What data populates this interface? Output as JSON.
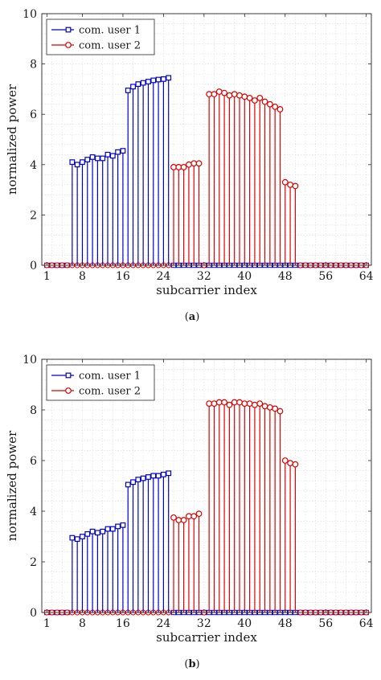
{
  "chart_data": [
    {
      "type": "stem",
      "caption_letter": "a",
      "title": "",
      "xlabel": "subcarrier index",
      "ylabel": "normalized power",
      "xlim": [
        0,
        65
      ],
      "ylim": [
        0,
        10
      ],
      "xticks": [
        1,
        8,
        16,
        24,
        32,
        40,
        48,
        56,
        64
      ],
      "yticks": [
        0,
        2,
        4,
        6,
        8,
        10
      ],
      "grid": true,
      "legend_position": "top-left",
      "series": [
        {
          "name": "com. user 1",
          "color": "#0000cc",
          "marker": "square",
          "x": [
            6,
            7,
            8,
            9,
            10,
            11,
            12,
            13,
            14,
            15,
            16,
            17,
            18,
            19,
            20,
            21,
            22,
            23,
            24,
            25
          ],
          "values": [
            4.1,
            4.0,
            4.1,
            4.2,
            4.3,
            4.25,
            4.25,
            4.4,
            4.35,
            4.5,
            4.55,
            6.95,
            7.1,
            7.2,
            7.25,
            7.3,
            7.35,
            7.38,
            7.4,
            7.45
          ]
        },
        {
          "name": "com. user 2",
          "color": "#dd0000",
          "marker": "circle",
          "x": [
            26,
            27,
            28,
            29,
            30,
            31,
            33,
            34,
            35,
            36,
            37,
            38,
            39,
            40,
            41,
            42,
            43,
            44,
            45,
            46,
            47,
            48,
            49,
            50
          ],
          "values": [
            3.9,
            3.9,
            3.9,
            4.0,
            4.05,
            4.05,
            6.8,
            6.8,
            6.9,
            6.85,
            6.75,
            6.8,
            6.75,
            6.7,
            6.65,
            6.55,
            6.65,
            6.5,
            6.4,
            6.3,
            6.2,
            3.3,
            3.2,
            3.15
          ]
        }
      ]
    },
    {
      "type": "stem",
      "caption_letter": "b",
      "title": "",
      "xlabel": "subcarrier index",
      "ylabel": "normalized power",
      "xlim": [
        0,
        65
      ],
      "ylim": [
        0,
        10
      ],
      "xticks": [
        1,
        8,
        16,
        24,
        32,
        40,
        48,
        56,
        64
      ],
      "yticks": [
        0,
        2,
        4,
        6,
        8,
        10
      ],
      "grid": true,
      "legend_position": "top-left",
      "series": [
        {
          "name": "com. user 1",
          "color": "#0000cc",
          "marker": "square",
          "x": [
            6,
            7,
            8,
            9,
            10,
            11,
            12,
            13,
            14,
            15,
            16,
            17,
            18,
            19,
            20,
            21,
            22,
            23,
            24,
            25
          ],
          "values": [
            2.95,
            2.9,
            3.0,
            3.1,
            3.2,
            3.15,
            3.2,
            3.3,
            3.3,
            3.4,
            3.45,
            5.05,
            5.15,
            5.25,
            5.3,
            5.35,
            5.4,
            5.4,
            5.45,
            5.5
          ]
        },
        {
          "name": "com. user 2",
          "color": "#dd0000",
          "marker": "circle",
          "x": [
            26,
            27,
            28,
            29,
            30,
            31,
            33,
            34,
            35,
            36,
            37,
            38,
            39,
            40,
            41,
            42,
            43,
            44,
            45,
            46,
            47,
            48,
            49,
            50
          ],
          "values": [
            3.75,
            3.65,
            3.65,
            3.8,
            3.8,
            3.9,
            8.25,
            8.25,
            8.3,
            8.3,
            8.2,
            8.3,
            8.3,
            8.25,
            8.25,
            8.2,
            8.25,
            8.15,
            8.1,
            8.05,
            7.95,
            6.0,
            5.9,
            5.85
          ]
        }
      ]
    }
  ]
}
